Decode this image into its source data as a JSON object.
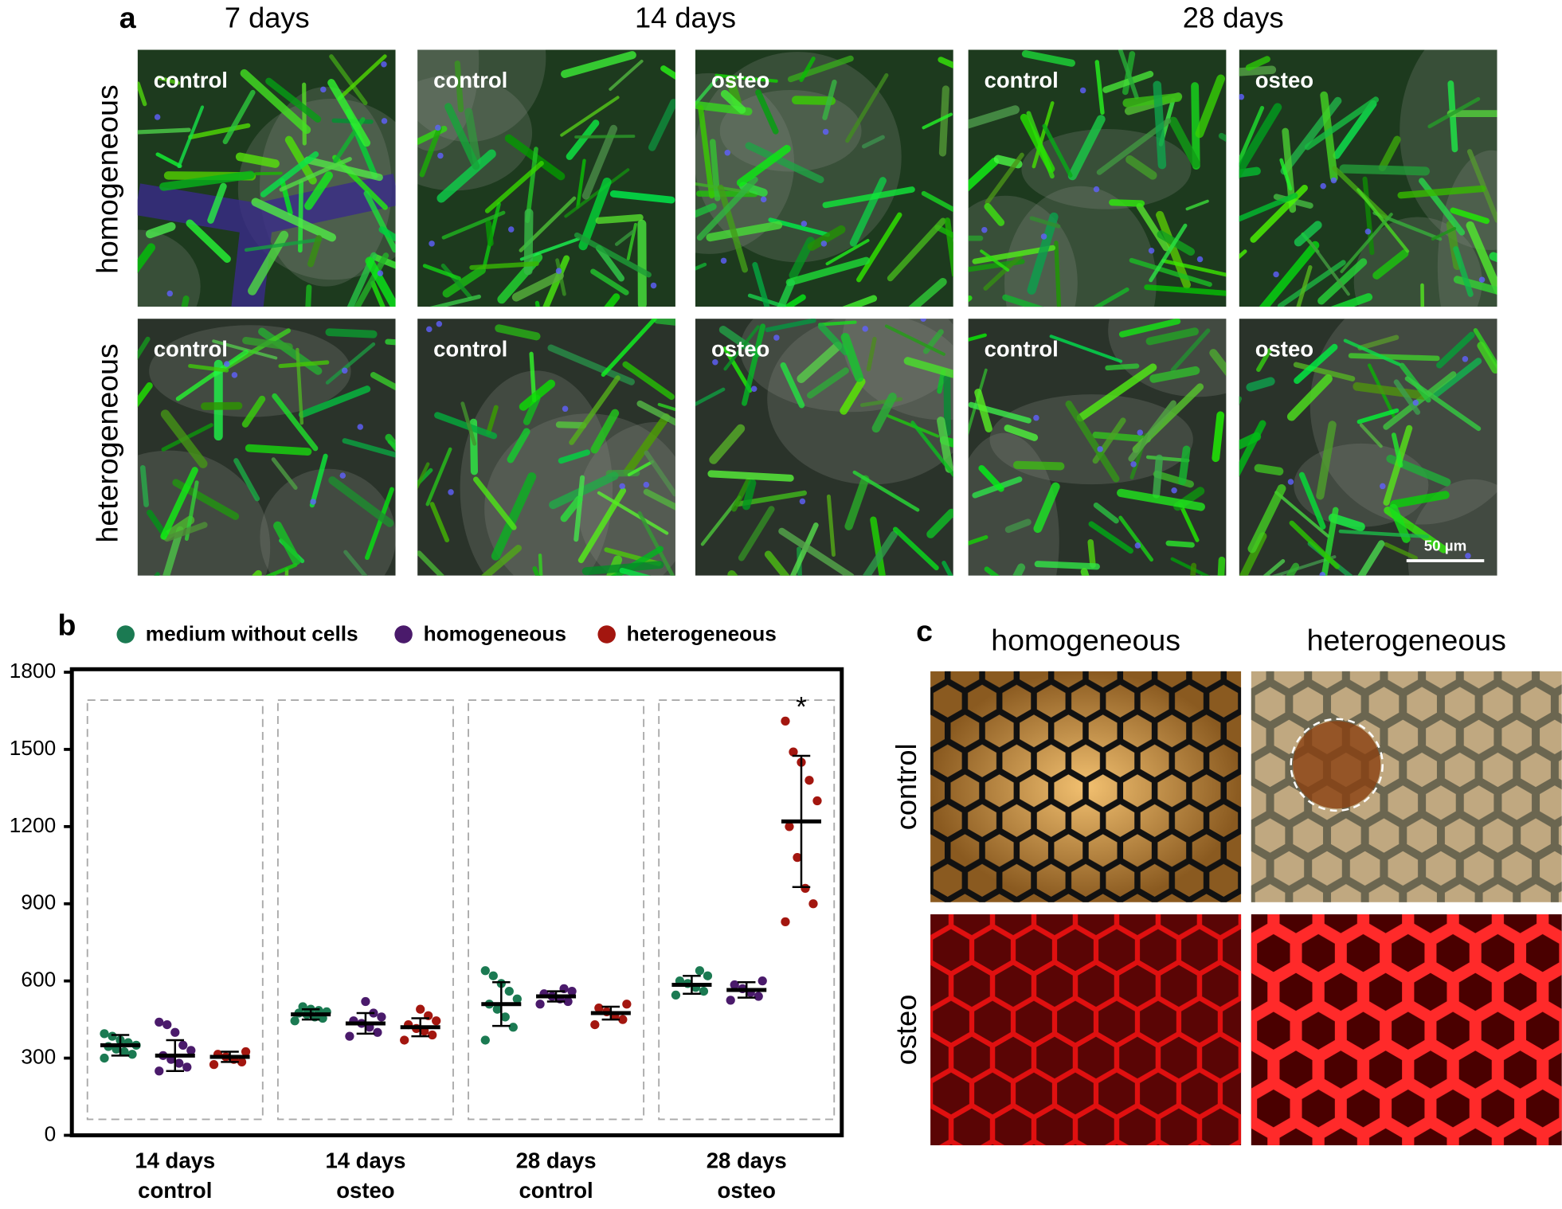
{
  "panel_a": {
    "label": "a",
    "columns": [
      "7 days",
      "14 days",
      "28 days"
    ],
    "rows": [
      "homogeneous",
      "heterogeneous"
    ],
    "images": [
      [
        "control",
        "control",
        "osteo",
        "control",
        "osteo"
      ],
      [
        "control",
        "control",
        "osteo",
        "control",
        "osteo"
      ]
    ],
    "scale_bar": "50 µm"
  },
  "chart_data": {
    "type": "dot",
    "panel_label": "b",
    "categories": [
      [
        "14 days",
        "control"
      ],
      [
        "14 days",
        "osteo"
      ],
      [
        "28 days",
        "control"
      ],
      [
        "28 days",
        "osteo"
      ]
    ],
    "series": [
      {
        "name": "medium without cells",
        "color": "#1b7a52",
        "values": [
          350,
          470,
          510,
          585
        ],
        "errors": [
          40,
          20,
          85,
          35
        ],
        "points": [
          [
            300,
            315,
            325,
            335,
            345,
            350,
            360,
            370,
            385,
            395
          ],
          [
            445,
            455,
            460,
            470,
            475,
            480,
            485,
            490,
            500
          ],
          [
            370,
            420,
            460,
            490,
            510,
            530,
            560,
            590,
            620,
            640
          ],
          [
            545,
            560,
            575,
            590,
            600,
            620,
            640
          ]
        ]
      },
      {
        "name": "homogeneous",
        "color": "#4a1a6b",
        "values": [
          310,
          435,
          540,
          565
        ],
        "errors": [
          60,
          40,
          20,
          30
        ],
        "points": [
          [
            250,
            265,
            280,
            295,
            310,
            330,
            350,
            400,
            430,
            440
          ],
          [
            385,
            400,
            420,
            435,
            445,
            460,
            475,
            520
          ],
          [
            510,
            520,
            530,
            540,
            550,
            560,
            570
          ],
          [
            525,
            540,
            555,
            570,
            585,
            600
          ]
        ]
      },
      {
        "name": "heterogeneous",
        "color": "#a3160f",
        "values": [
          305,
          420,
          475,
          1220
        ],
        "errors": [
          20,
          35,
          25,
          255
        ],
        "points": [
          [
            275,
            285,
            295,
            305,
            315,
            325
          ],
          [
            370,
            390,
            405,
            415,
            430,
            445,
            465,
            490
          ],
          [
            430,
            450,
            465,
            480,
            495,
            510
          ],
          [
            830,
            900,
            960,
            1080,
            1200,
            1300,
            1380,
            1450,
            1490,
            1610
          ]
        ]
      }
    ],
    "ylim": [
      0,
      1800
    ],
    "yticks": [
      0,
      300,
      600,
      900,
      1200,
      1500,
      1800
    ],
    "annotation": "*"
  },
  "panel_c": {
    "label": "c",
    "columns": [
      "homogeneous",
      "heterogeneous"
    ],
    "rows": [
      "control",
      "osteo"
    ]
  }
}
